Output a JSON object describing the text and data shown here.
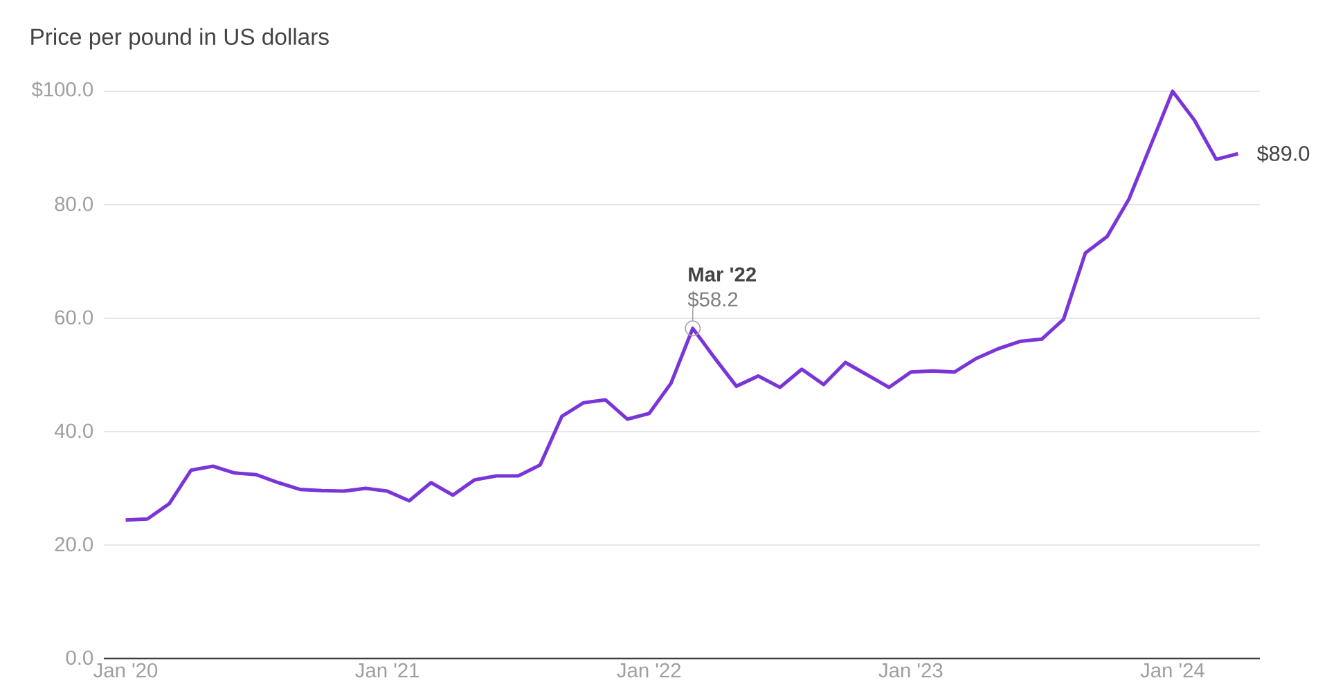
{
  "chart_data": {
    "type": "line",
    "title": "Price per pound in US dollars",
    "x": [
      "2020-01",
      "2020-02",
      "2020-03",
      "2020-04",
      "2020-05",
      "2020-06",
      "2020-07",
      "2020-08",
      "2020-09",
      "2020-10",
      "2020-11",
      "2020-12",
      "2021-01",
      "2021-02",
      "2021-03",
      "2021-04",
      "2021-05",
      "2021-06",
      "2021-07",
      "2021-08",
      "2021-09",
      "2021-10",
      "2021-11",
      "2021-12",
      "2022-01",
      "2022-02",
      "2022-03",
      "2022-04",
      "2022-05",
      "2022-06",
      "2022-07",
      "2022-08",
      "2022-09",
      "2022-10",
      "2022-11",
      "2022-12",
      "2023-01",
      "2023-02",
      "2023-03",
      "2023-04",
      "2023-05",
      "2023-06",
      "2023-07",
      "2023-08",
      "2023-09",
      "2023-10",
      "2023-11",
      "2023-12",
      "2024-01",
      "2024-02",
      "2024-03",
      "2024-04"
    ],
    "series": [
      {
        "color": "#7a35d9",
        "values": [
          24.4,
          24.6,
          27.3,
          33.2,
          33.9,
          32.7,
          32.4,
          31.0,
          29.8,
          29.6,
          29.5,
          30.0,
          29.5,
          27.8,
          31.0,
          28.8,
          31.5,
          32.2,
          32.2,
          34.1,
          42.7,
          45.1,
          45.6,
          42.2,
          43.2,
          48.5,
          58.2,
          53.0,
          48.0,
          49.8,
          47.8,
          51.0,
          48.3,
          52.2,
          50.0,
          47.8,
          50.5,
          50.7,
          50.5,
          52.9,
          54.6,
          55.9,
          56.3,
          59.8,
          71.5,
          74.4,
          81.0,
          90.5,
          100.0,
          94.9,
          88.0,
          89.0
        ]
      }
    ],
    "xlim": [
      "2019-12",
      "2024-05"
    ],
    "xticks": [
      {
        "value": "2020-01",
        "label": "Jan '20"
      },
      {
        "value": "2021-01",
        "label": "Jan '21"
      },
      {
        "value": "2022-01",
        "label": "Jan '22"
      },
      {
        "value": "2023-01",
        "label": "Jan '23"
      },
      {
        "value": "2024-01",
        "label": "Jan '24"
      }
    ],
    "ylim": [
      0,
      100
    ],
    "yticks": [
      {
        "value": 0,
        "label": "0.0"
      },
      {
        "value": 20,
        "label": "20.0"
      },
      {
        "value": 40,
        "label": "40.0"
      },
      {
        "value": 60,
        "label": "60.0"
      },
      {
        "value": 80,
        "label": "80.0"
      },
      {
        "value": 100,
        "label": "$100.0"
      }
    ],
    "grid": "y",
    "marker": "none",
    "line_style": "solid",
    "annotations": [
      {
        "text": "Mar '22",
        "x": "2022-03",
        "y": 58.2
      },
      {
        "text": "$58.2",
        "x": "2022-03",
        "y": 58.2
      },
      {
        "text": "$89.0",
        "x": "2024-04",
        "y": 89.0
      }
    ]
  }
}
